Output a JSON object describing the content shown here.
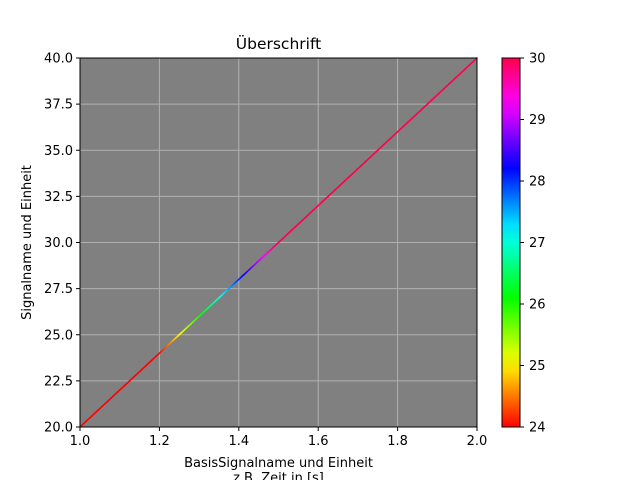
{
  "chart_data": {
    "type": "line",
    "title": "Überschrift",
    "xlabel_line1": "BasisSignalname und Einheit",
    "xlabel_line2": "z.B. Zeit in [s]",
    "ylabel": "Signalname und Einheit",
    "xlim": [
      1.0,
      2.0
    ],
    "ylim": [
      20.0,
      40.0
    ],
    "x_ticks": [
      "1.0",
      "1.2",
      "1.4",
      "1.6",
      "1.8",
      "2.0"
    ],
    "y_ticks": [
      "20.0",
      "22.5",
      "25.0",
      "27.5",
      "30.0",
      "32.5",
      "35.0",
      "37.5",
      "40.0"
    ],
    "grid": true,
    "plot_background": "#808080",
    "grid_color": "#b0b0b0",
    "colormap": "hsv",
    "series": [
      {
        "x": [
          1.0,
          2.0
        ],
        "y": [
          20.0,
          40.0
        ],
        "color_values": "y",
        "color_range": [
          24,
          30
        ]
      }
    ],
    "colorbar": {
      "range": [
        24,
        30
      ],
      "ticks": [
        "24",
        "25",
        "26",
        "27",
        "28",
        "29",
        "30"
      ]
    }
  }
}
